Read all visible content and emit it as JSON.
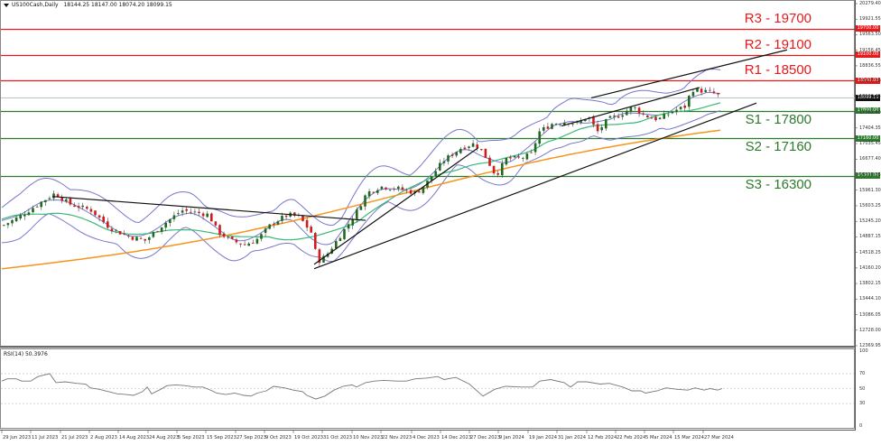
{
  "header": {
    "symbol": "US100Cash,Daily",
    "ohlc": "18144.25 18147.00 18074.20 18099.15"
  },
  "rsi_panel": {
    "label": "RSI(14) 50.3976",
    "levels": [
      "100",
      "70",
      "50",
      "30",
      "0"
    ]
  },
  "colors": {
    "resistance": "#e8191b",
    "support": "#2c7a2c",
    "bull_candle": "#1e6b1e",
    "bear_candle": "#d01c1c",
    "bollinger": "#7777cc",
    "ma_green": "#3cb878",
    "ma_orange": "#f7941d",
    "trendline": "#111111",
    "rsi_line": "#777777",
    "current_price_line": "#b8c4cc"
  },
  "levels": [
    {
      "name": "R3",
      "label": "R3 - 19700",
      "value": 19700,
      "tag": "19700.00",
      "type": "resistance"
    },
    {
      "name": "R2",
      "label": "R2 - 19100",
      "value": 19100,
      "tag": "19100.00",
      "type": "resistance"
    },
    {
      "name": "R1",
      "label": "R1 - 18500",
      "value": 18500,
      "tag": "18500.00",
      "type": "resistance"
    },
    {
      "name": "S1",
      "label": "S1 - 17800",
      "value": 17800,
      "tag": "17800.00",
      "type": "support"
    },
    {
      "name": "S2",
      "label": "S2 - 17160",
      "value": 17160,
      "tag": "17160.00",
      "type": "support"
    },
    {
      "name": "S3",
      "label": "S3 - 16300",
      "value": 16300,
      "tag": "16300.00",
      "type": "support"
    }
  ],
  "current_price_tag": "18099.15",
  "price_axis": [
    "20279.40",
    "19921.55",
    "19563.50",
    "19156.45",
    "18836.55",
    "18478.50",
    "18120.45",
    "17762.40",
    "17404.35",
    "17035.45",
    "16677.40",
    "16319.35",
    "15961.30",
    "15603.25",
    "15245.20",
    "14887.15",
    "14518.25",
    "14160.20",
    "13802.15",
    "13444.10",
    "13086.05",
    "12728.00",
    "12369.95"
  ],
  "x_axis": [
    "29 Jun 2023",
    "11 Jul 2023",
    "21 Jul 2023",
    "2 Aug 2023",
    "14 Aug 2023",
    "24 Aug 2023",
    "5 Sep 2023",
    "15 Sep 2023",
    "27 Sep 2023",
    "9 Oct 2023",
    "19 Oct 2023",
    "31 Oct 2023",
    "10 Nov 2023",
    "22 Nov 2023",
    "4 Dec 2023",
    "14 Dec 2023",
    "27 Dec 2023",
    "9 Jan 2024",
    "19 Jan 2024",
    "31 Jan 2024",
    "12 Feb 2024",
    "22 Feb 2024",
    "5 Mar 2024",
    "15 Mar 2024",
    "27 Mar 2024"
  ],
  "chart_data": {
    "type": "candlestick",
    "title": "US100Cash,Daily",
    "ohlc_last": {
      "open": 18144.25,
      "high": 18147.0,
      "low": 18074.2,
      "close": 18099.15
    },
    "xlabel": "",
    "ylabel": "",
    "ylim": [
      12369.95,
      20279.4
    ],
    "categories": [
      "29 Jun 2023",
      "11 Jul 2023",
      "21 Jul 2023",
      "2 Aug 2023",
      "14 Aug 2023",
      "24 Aug 2023",
      "5 Sep 2023",
      "15 Sep 2023",
      "27 Sep 2023",
      "9 Oct 2023",
      "19 Oct 2023",
      "31 Oct 2023",
      "10 Nov 2023",
      "22 Nov 2023",
      "4 Dec 2023",
      "14 Dec 2023",
      "27 Dec 2023",
      "9 Jan 2024",
      "19 Jan 2024",
      "31 Jan 2024",
      "12 Feb 2024",
      "22 Feb 2024",
      "5 Mar 2024",
      "15 Mar 2024",
      "27 Mar 2024"
    ],
    "series": [
      {
        "name": "Approx close at date ticks",
        "values": [
          14950,
          15350,
          15800,
          15450,
          14850,
          15100,
          15350,
          15200,
          14700,
          14950,
          15000,
          14300,
          15600,
          16000,
          16300,
          16800,
          16750,
          16500,
          17200,
          17500,
          17850,
          17900,
          18250,
          18100,
          18250
        ]
      },
      {
        "name": "RSI(14)",
        "values": [
          60,
          62,
          68,
          60,
          48,
          52,
          62,
          58,
          42,
          52,
          55,
          35,
          62,
          68,
          70,
          72,
          66,
          48,
          64,
          70,
          62,
          60,
          56,
          58,
          50
        ]
      }
    ],
    "horizontal_levels": {
      "resistance": [
        19700,
        19100,
        18500
      ],
      "support": [
        17800,
        17160,
        16300
      ]
    },
    "indicators": [
      "Bollinger Bands",
      "Moving Average (green)",
      "Moving Average (orange)",
      "RSI(14) 50.3976"
    ],
    "rsi_ylim": [
      0,
      100
    ],
    "rsi_levels": [
      30,
      50,
      70
    ],
    "grid": false,
    "legend": "none"
  }
}
